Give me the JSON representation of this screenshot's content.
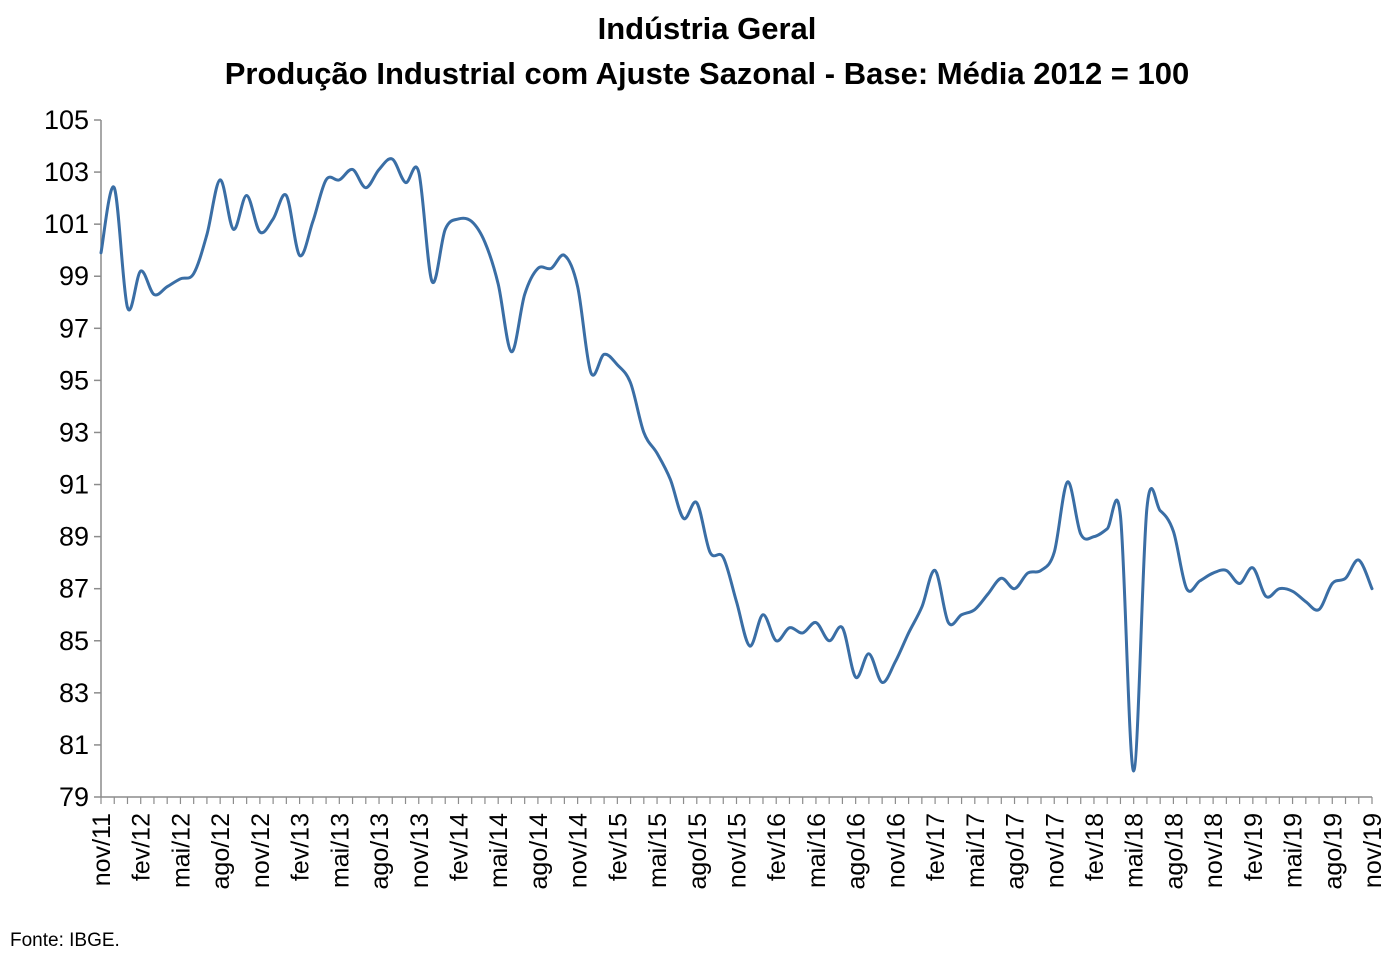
{
  "chart_data": {
    "type": "line",
    "title": "Indústria Geral",
    "subtitle": "Produção Industrial com Ajuste Sazonal - Base: Média 2012 = 100",
    "xlabel": "",
    "ylabel": "",
    "ylim": [
      79,
      105
    ],
    "yticks": [
      79,
      81,
      83,
      85,
      87,
      89,
      91,
      93,
      95,
      97,
      99,
      101,
      103,
      105
    ],
    "xtick_labels": [
      "nov/11",
      "fev/12",
      "mai/12",
      "ago/12",
      "nov/12",
      "fev/13",
      "mai/13",
      "ago/13",
      "nov/13",
      "fev/14",
      "mai/14",
      "ago/14",
      "nov/14",
      "fev/15",
      "mai/15",
      "ago/15",
      "nov/15",
      "fev/16",
      "mai/16",
      "ago/16",
      "nov/16",
      "fev/17",
      "mai/17",
      "ago/17",
      "nov/17",
      "fev/18",
      "mai/18",
      "ago/18",
      "nov/18",
      "fev/19",
      "mai/19",
      "ago/19",
      "nov/19"
    ],
    "grid": false,
    "legend": "none",
    "series_color": "#3a6ea5",
    "series": [
      {
        "values": [
          99.9,
          102.4,
          97.8,
          99.2,
          98.3,
          98.6,
          98.9,
          99.1,
          100.6,
          102.7,
          100.8,
          102.1,
          100.7,
          101.2,
          102.1,
          99.8,
          101.1,
          102.7,
          102.7,
          103.1,
          102.4,
          103.1,
          103.5,
          102.6,
          103.0,
          98.8,
          100.8,
          101.2,
          101.1,
          100.3,
          98.7,
          96.1,
          98.3,
          99.3,
          99.3,
          99.8,
          98.6,
          95.3,
          96.0,
          95.6,
          94.9,
          93.0,
          92.2,
          91.2,
          89.7,
          90.3,
          88.4,
          88.2,
          86.5,
          84.8,
          86.0,
          85.0,
          85.5,
          85.3,
          85.7,
          85.0,
          85.5,
          83.6,
          84.5,
          83.4,
          84.2,
          85.3,
          86.3,
          87.7,
          85.7,
          86.0,
          86.2,
          86.8,
          87.4,
          87.0,
          87.6,
          87.7,
          88.4,
          91.1,
          89.1,
          89.0,
          89.3,
          89.8,
          80.0,
          90.1,
          90.0,
          89.2,
          87.0,
          87.3,
          87.6,
          87.7,
          87.2,
          87.8,
          86.7,
          87.0,
          86.9,
          86.5,
          86.2,
          87.2,
          87.4,
          88.1,
          87.0
        ]
      }
    ]
  },
  "source": "Fonte: IBGE."
}
